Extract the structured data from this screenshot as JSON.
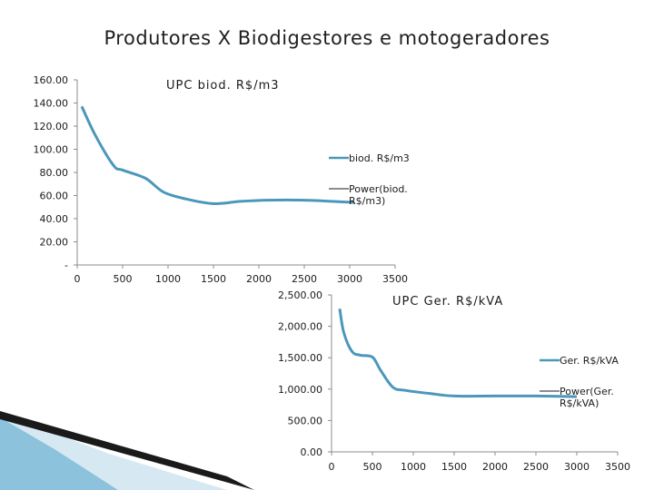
{
  "slide": {
    "title": "Produtores  X  Biodigestores e motogeradores",
    "colors": {
      "series": "#4b97ba",
      "axis": "#8c8c8c",
      "trend": "#1a1a1a"
    }
  },
  "chart_data": [
    {
      "type": "line",
      "title": "UPC biod. R$/m3",
      "xlabel": "",
      "ylabel": "",
      "xlim": [
        0,
        3500
      ],
      "ylim": [
        0,
        160
      ],
      "x_ticks": [
        "0",
        "500",
        "1000",
        "1500",
        "2000",
        "2500",
        "3000",
        "3500"
      ],
      "y_ticks": [
        "-",
        "20.00",
        "40.00",
        "60.00",
        "80.00",
        "100.00",
        "120.00",
        "140.00",
        "160.00"
      ],
      "grid": false,
      "legend_position": "right",
      "series": [
        {
          "name": "biod. R$/m3",
          "x": [
            50,
            200,
            400,
            500,
            750,
            950,
            1200,
            1500,
            1800,
            2100,
            2500,
            2800,
            3050
          ],
          "values": [
            137,
            112,
            86,
            82,
            75,
            63,
            57,
            53,
            55,
            56,
            56,
            55,
            54
          ]
        }
      ],
      "trendline": {
        "name": "Power(biod. R$/m3)",
        "shown_in": "legend"
      }
    },
    {
      "type": "line",
      "title": "UPC Ger. R$/kVA",
      "xlabel": "",
      "ylabel": "",
      "xlim": [
        0,
        3500
      ],
      "ylim": [
        0,
        2500
      ],
      "x_ticks": [
        "0",
        "500",
        "1000",
        "1500",
        "2000",
        "2500",
        "3000",
        "3500"
      ],
      "y_ticks": [
        "0.00",
        "500.00",
        "1,000.00",
        "1,500.00",
        "2,000.00",
        "2,500.00"
      ],
      "grid": false,
      "legend_position": "right",
      "series": [
        {
          "name": "Ger. R$/kVA",
          "x": [
            100,
            150,
            250,
            350,
            500,
            600,
            750,
            900,
            1200,
            1500,
            2000,
            2500,
            3000
          ],
          "values": [
            2280,
            1900,
            1600,
            1540,
            1510,
            1300,
            1030,
            980,
            930,
            890,
            890,
            890,
            880
          ]
        }
      ],
      "trendline": {
        "name": "Power(Ger. R$/kVA)",
        "shown_in": "legend"
      }
    }
  ]
}
